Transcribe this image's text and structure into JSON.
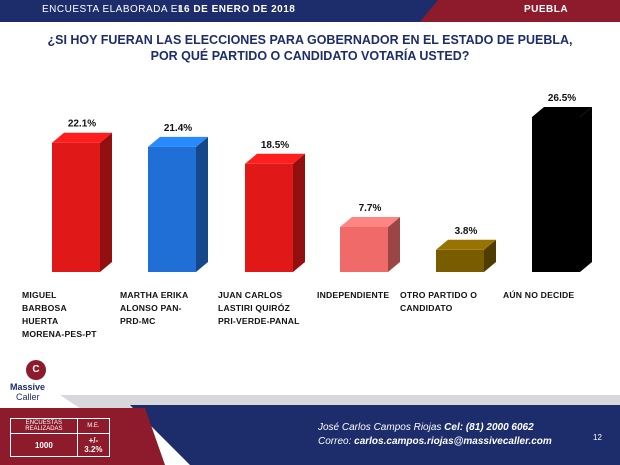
{
  "header": {
    "survey_label": "ENCUESTA ELABORADA EL",
    "date": "16 DE ENERO DE 2018",
    "state": "PUEBLA"
  },
  "title_line1": "¿SI HOY FUERAN LAS ELECCIONES PARA GOBERNADOR EN EL ESTADO DE PUEBLA,",
  "title_line2": "POR QUÉ PARTIDO O CANDIDATO VOTARÍA USTED?",
  "chart_data": {
    "type": "bar",
    "title": "¿SI HOY FUERAN LAS ELECCIONES PARA GOBERNADOR EN EL ESTADO DE PUEBLA, POR QUÉ PARTIDO O CANDIDATO VOTARÍA USTED?",
    "categories": [
      "MIGUEL BARBOSA HUERTA MORENA-PES-PT",
      "MARTHA ERIKA ALONSO PAN-PRD-MC",
      "JUAN CARLOS LASTIRI QUIRÓZ PRI-VERDE-PANAL",
      "INDEPENDIENTE",
      "OTRO PARTIDO O CANDIDATO",
      "AÚN NO DECIDE"
    ],
    "category_lines": [
      "MIGUEL\nBARBOSA\nHUERTA\nMORENA-PES-PT",
      "MARTHA ERIKA\nALONSO PAN-\nPRD-MC",
      "JUAN CARLOS\nLASTIRI QUIRÓZ\nPRI-VERDE-PANAL",
      "INDEPENDIENTE",
      "OTRO PARTIDO O\nCANDIDATO",
      "AÚN NO DECIDE"
    ],
    "values": [
      22.1,
      21.4,
      18.5,
      7.7,
      3.8,
      26.5
    ],
    "value_labels": [
      "22.1%",
      "21.4%",
      "18.5%",
      "7.7%",
      "3.8%",
      "26.5%"
    ],
    "colors": [
      "#e01818",
      "#1f6fd6",
      "#e01818",
      "#f06a6a",
      "#7a5c00",
      "#000000"
    ],
    "xlabel": "",
    "ylabel": "",
    "grid": false,
    "legend": "none"
  },
  "footer": {
    "logo_name": "Massive",
    "logo_sub": "Caller",
    "logo_mark": "C",
    "surveys_label": "ENCUESTAS REALIZADAS",
    "me_label": "M.E.",
    "surveys_value": "1000",
    "me_value": "+/- 3.2%",
    "contact_name": "José Carlos Campos Riojas",
    "phone": "Cel: (81) 2000 6062",
    "email_label": "Correo:",
    "email": "carlos.campos.riojas@massivecaller.com",
    "page_number": "12"
  }
}
